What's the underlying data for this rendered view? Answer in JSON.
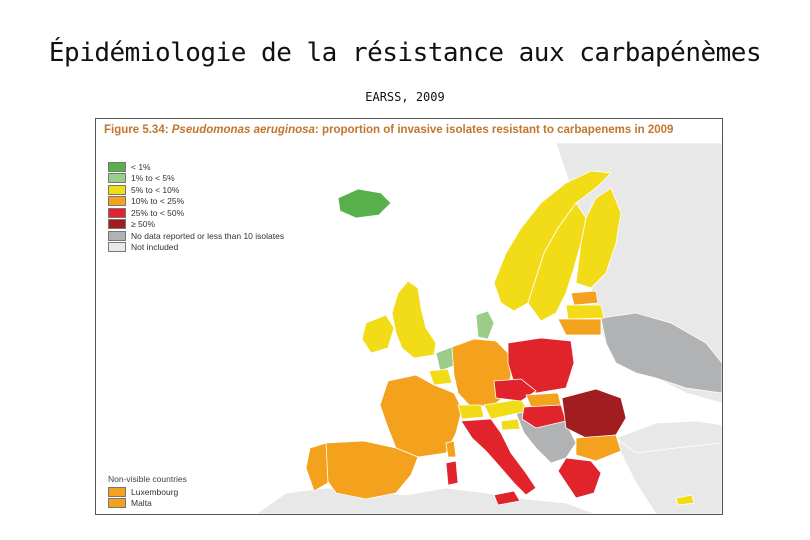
{
  "title": "Épidémiologie de la résistance aux carbapénèmes",
  "subtitle": "EARSS, 2009",
  "figure": {
    "label": "Figure 5.34:",
    "organism": "Pseudomonas aeruginosa",
    "caption_rest": ": proportion of invasive isolates resistant to carbapenems in 2009"
  },
  "colors": {
    "lt1": "#57b04b",
    "1to5": "#9ccc8a",
    "5to10": "#f2dc17",
    "10to25": "#f4a11e",
    "25to50": "#e1232b",
    "ge50": "#a11d20",
    "nodata": "#b0b2b4",
    "notincl": "#e8e8e8",
    "sea": "#ffffff"
  },
  "legend": [
    {
      "label": "< 1%",
      "color": "#57b04b"
    },
    {
      "label": "1% to < 5%",
      "color": "#9ccc8a"
    },
    {
      "label": "5% to < 10%",
      "color": "#f2dc17"
    },
    {
      "label": "10% to < 25%",
      "color": "#f4a11e"
    },
    {
      "label": "25% to < 50%",
      "color": "#e1232b"
    },
    {
      "label": "≥ 50%",
      "color": "#a11d20"
    },
    {
      "label": "No data reported or less than 10 isolates",
      "color": "#b0b2b4"
    },
    {
      "label": "Not included",
      "color": "#e8e8e8"
    }
  ],
  "non_visible": {
    "title": "Non-visible countries",
    "items": [
      {
        "label": "Luxembourg",
        "color": "#f4a11e"
      },
      {
        "label": "Malta",
        "color": "#f4a11e"
      }
    ]
  }
}
